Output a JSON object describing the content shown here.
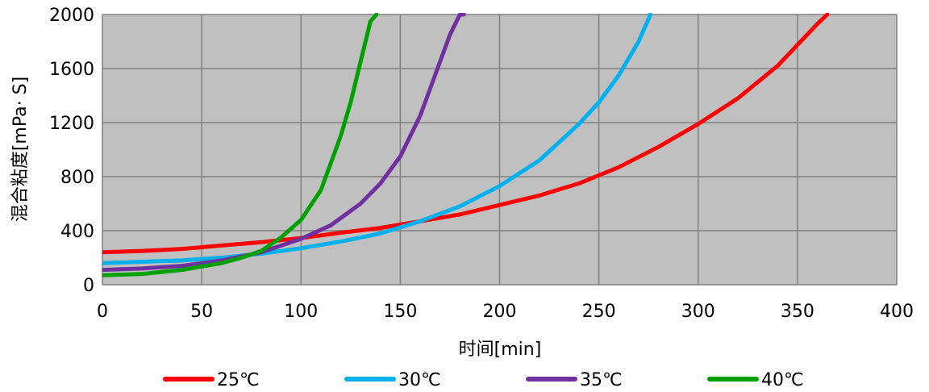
{
  "chart_data": {
    "type": "line",
    "title": "",
    "xlabel": "时间[min]",
    "ylabel": "混合粘度[mPa· S]",
    "xlim": [
      0,
      400
    ],
    "ylim": [
      0,
      2000
    ],
    "xticks": [
      "0",
      "50",
      "100",
      "150",
      "200",
      "250",
      "300",
      "350",
      "400"
    ],
    "yticks": [
      "0",
      "400",
      "800",
      "1200",
      "1600",
      "2000"
    ],
    "grid": true,
    "plot_background": "#c0c0c0",
    "grid_color": "#808080",
    "legend_position": "bottom",
    "series": [
      {
        "name": "25℃",
        "color": "#ff0000",
        "x": [
          0,
          20,
          40,
          60,
          80,
          100,
          120,
          140,
          160,
          180,
          200,
          220,
          240,
          260,
          280,
          300,
          320,
          340,
          360,
          365
        ],
        "y": [
          240,
          250,
          265,
          290,
          315,
          345,
          385,
          420,
          470,
          520,
          590,
          660,
          750,
          870,
          1020,
          1190,
          1380,
          1620,
          1930,
          2000
        ]
      },
      {
        "name": "30℃",
        "color": "#00b0f0",
        "x": [
          0,
          20,
          40,
          60,
          80,
          100,
          120,
          140,
          160,
          180,
          200,
          220,
          240,
          250,
          260,
          270,
          276
        ],
        "y": [
          160,
          170,
          180,
          200,
          230,
          270,
          320,
          380,
          470,
          580,
          730,
          920,
          1190,
          1350,
          1550,
          1800,
          2000
        ]
      },
      {
        "name": "35℃",
        "color": "#7030a0",
        "x": [
          0,
          20,
          40,
          60,
          80,
          100,
          115,
          130,
          140,
          150,
          160,
          170,
          175,
          180,
          182
        ],
        "y": [
          110,
          120,
          140,
          180,
          240,
          340,
          440,
          600,
          750,
          950,
          1250,
          1650,
          1850,
          2000,
          2000
        ]
      },
      {
        "name": "40℃",
        "color": "#00a000",
        "x": [
          0,
          20,
          40,
          60,
          70,
          80,
          90,
          100,
          110,
          120,
          125,
          130,
          135,
          138
        ],
        "y": [
          70,
          80,
          110,
          160,
          200,
          250,
          350,
          480,
          700,
          1100,
          1350,
          1650,
          1950,
          2000
        ]
      }
    ]
  }
}
